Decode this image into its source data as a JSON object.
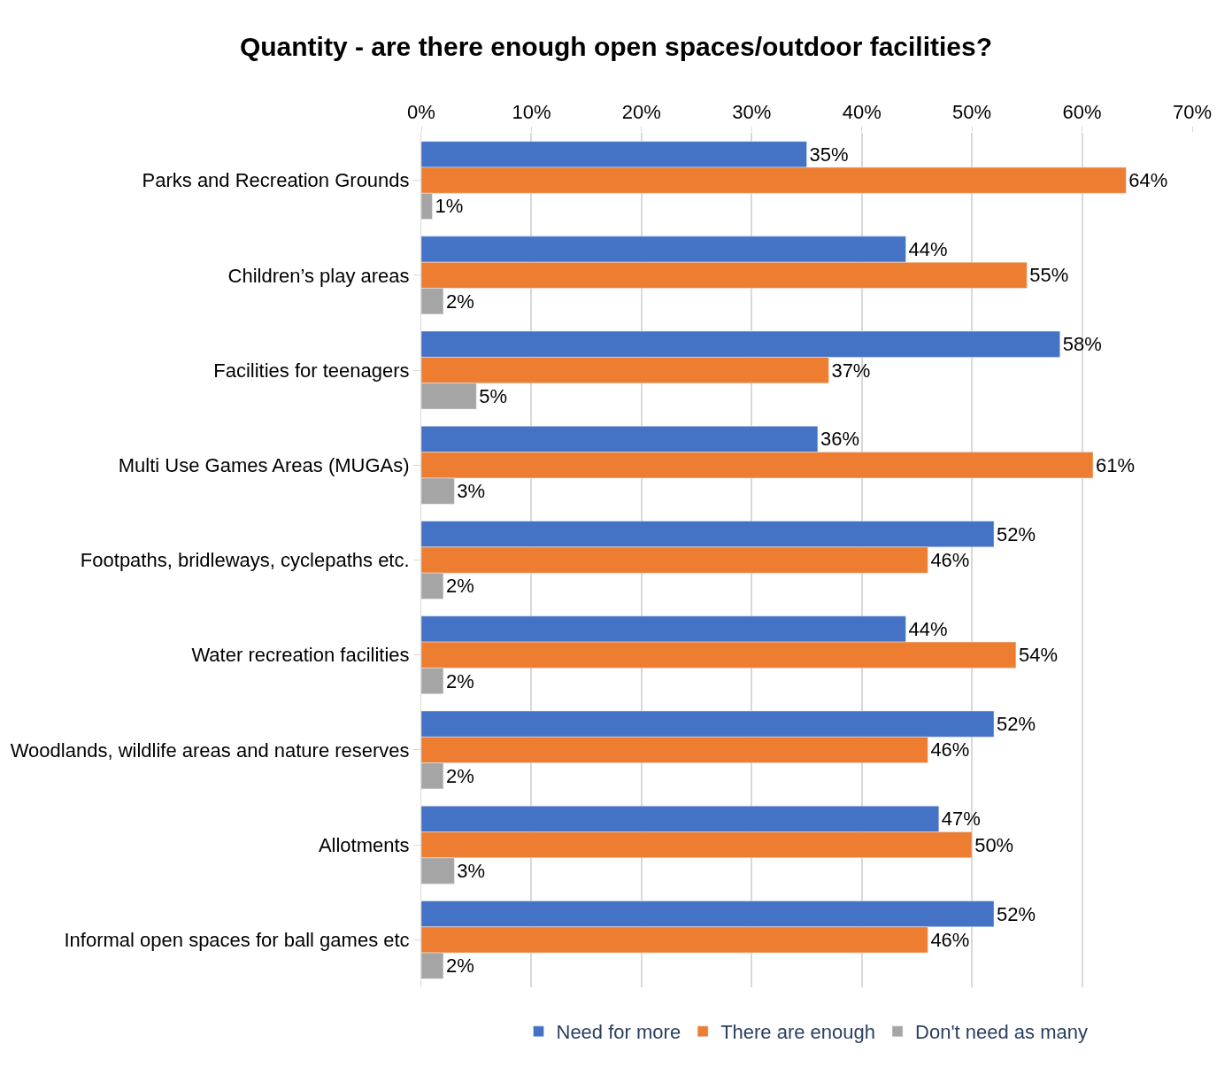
{
  "chart_data": {
    "type": "bar",
    "orientation": "horizontal",
    "title": "Quantity - are there enough open spaces/outdoor facilities?",
    "categories": [
      "Parks and Recreation Grounds",
      "Children’s play areas",
      "Facilities for teenagers",
      "Multi Use Games Areas (MUGAs)",
      "Footpaths, bridleways, cyclepaths etc.",
      "Water recreation facilities",
      "Woodlands, wildlife areas and nature reserves",
      "Allotments",
      "Informal open spaces for ball games etc"
    ],
    "series": [
      {
        "name": "Need for more",
        "color": "#4472c4",
        "values": [
          35,
          44,
          58,
          36,
          52,
          44,
          52,
          47,
          52
        ],
        "value_labels": [
          "35%",
          "44%",
          "58%",
          "36%",
          "52%",
          "44%",
          "52%",
          "47%",
          "52%"
        ]
      },
      {
        "name": "There are enough",
        "color": "#ed7d31",
        "values": [
          64,
          55,
          37,
          61,
          46,
          54,
          46,
          50,
          46
        ],
        "value_labels": [
          "64%",
          "55%",
          "37%",
          "61%",
          "46%",
          "54%",
          "46%",
          "50%",
          "46%"
        ]
      },
      {
        "name": "Don't need as many",
        "color": "#a5a5a5",
        "values": [
          1,
          2,
          5,
          3,
          2,
          2,
          2,
          3,
          2
        ],
        "value_labels": [
          "1%",
          "2%",
          "5%",
          "3%",
          "2%",
          "2%",
          "2%",
          "3%",
          "2%"
        ]
      }
    ],
    "xlim": [
      0,
      70
    ],
    "xticks": [
      {
        "value": 0,
        "label": "0%"
      },
      {
        "value": 10,
        "label": "10%"
      },
      {
        "value": 20,
        "label": "20%"
      },
      {
        "value": 30,
        "label": "30%"
      },
      {
        "value": 40,
        "label": "40%"
      },
      {
        "value": 50,
        "label": "50%"
      },
      {
        "value": 60,
        "label": "60%"
      },
      {
        "value": 70,
        "label": "70%"
      }
    ],
    "grid": "x",
    "legend": "bottom"
  }
}
